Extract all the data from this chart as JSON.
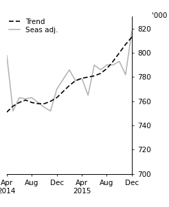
{
  "title": "",
  "ylabel": "'000",
  "ylim": [
    700,
    830
  ],
  "yticks": [
    700,
    720,
    740,
    760,
    780,
    800,
    820
  ],
  "x_labels": [
    "Apr\n2014",
    "Aug",
    "Dec",
    "Apr\n2015",
    "Aug",
    "Dec"
  ],
  "x_positions": [
    0,
    4,
    8,
    12,
    16,
    20
  ],
  "trend": [
    751,
    756,
    759,
    761,
    759,
    758,
    758,
    760,
    763,
    768,
    773,
    777,
    779,
    780,
    781,
    783,
    787,
    793,
    800,
    807,
    813
  ],
  "seas_adj": [
    798,
    752,
    763,
    762,
    763,
    759,
    755,
    752,
    770,
    778,
    786,
    777,
    779,
    765,
    790,
    786,
    790,
    790,
    793,
    782,
    818
  ],
  "trend_color": "#000000",
  "seas_color": "#b0b0b0",
  "trend_lw": 1.2,
  "seas_lw": 1.1,
  "legend_trend": "Trend",
  "legend_seas": "Seas adj.",
  "background_color": "#ffffff"
}
